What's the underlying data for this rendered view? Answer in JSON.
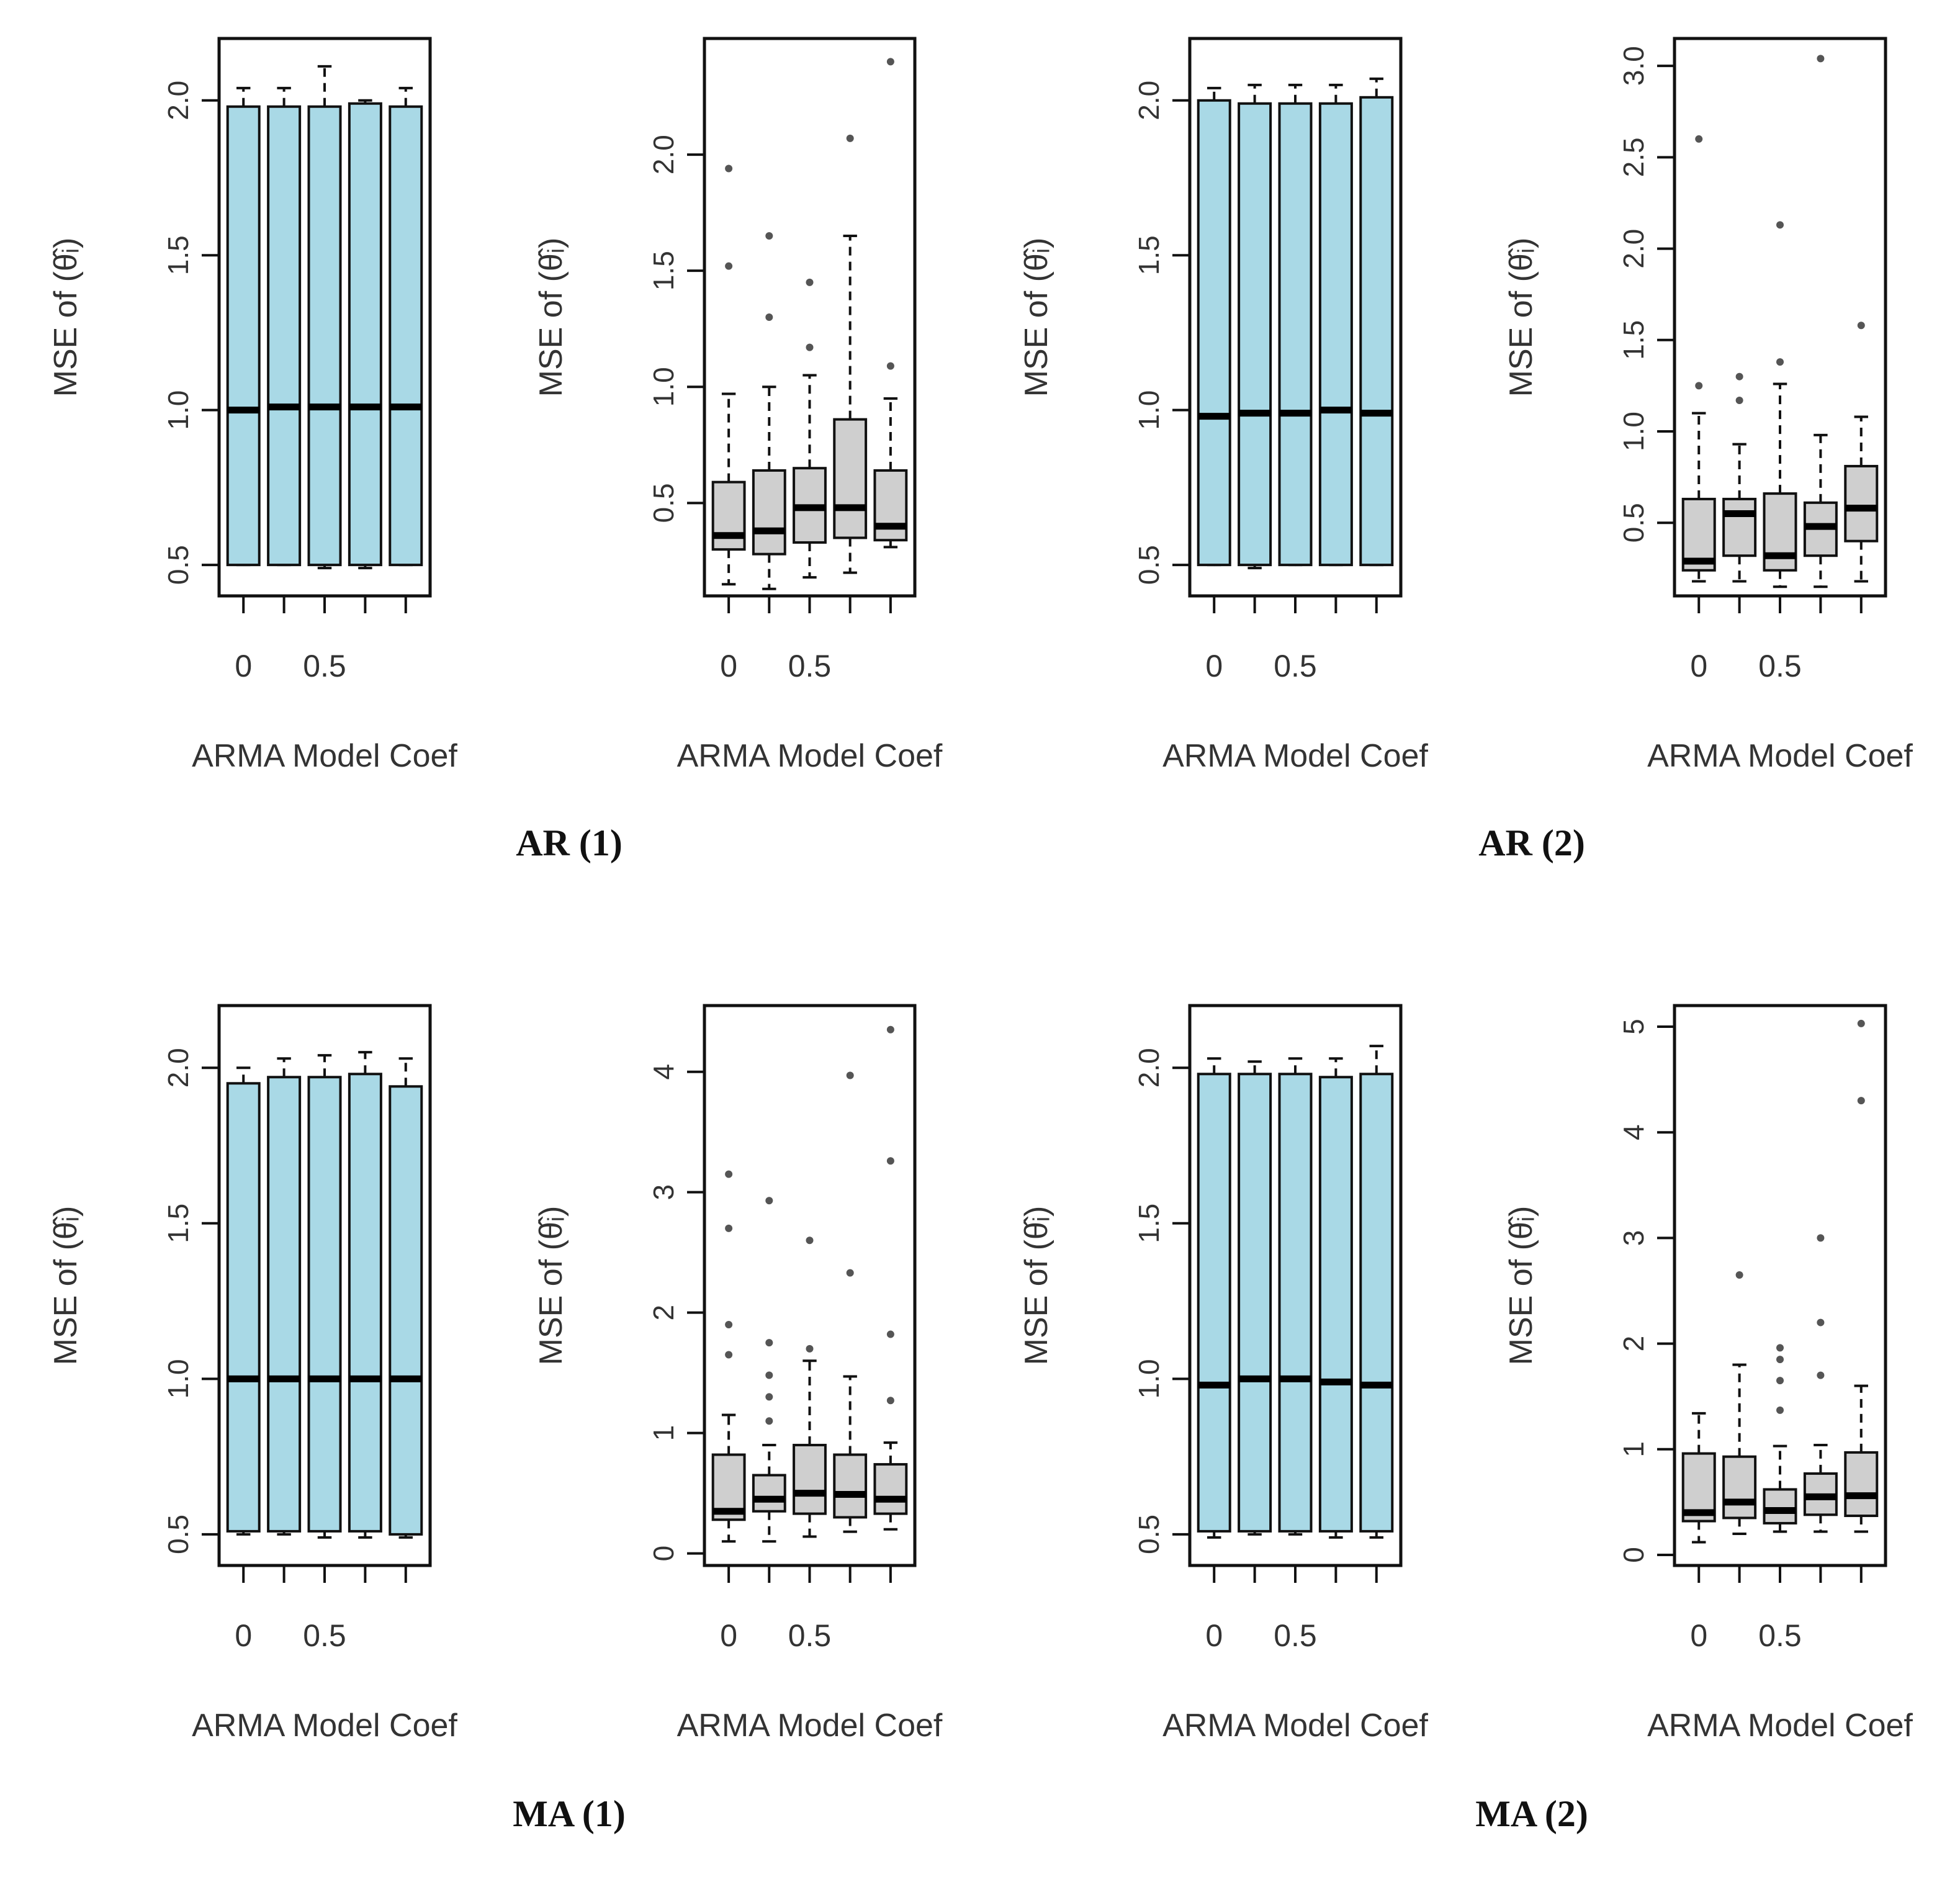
{
  "figure": {
    "colors": {
      "blue_box": "#a9d9e6",
      "gray_box": "#cfcfcf",
      "frame": "#111111",
      "text": "#333333"
    },
    "group_titles": [
      "AR (1)",
      "AR (2)",
      "MA (1)",
      "MA (2)"
    ]
  },
  "chart_data": [
    {
      "type": "box",
      "group": "AR (1)",
      "panel": "left",
      "xlabel": "ARMA Model Coef",
      "ylabel": "MSE of (θ̂ᵢ)",
      "x_ticks": [
        "0",
        "0.5"
      ],
      "y_ticks": [
        "0.5",
        "1.0",
        "1.5",
        "2.0"
      ],
      "ylim": [
        0.4,
        2.2
      ],
      "box_color": "#a9d9e6",
      "boxes": [
        {
          "whisker_low": 0.5,
          "q1": 0.5,
          "median": 1.0,
          "q3": 1.98,
          "whisker_high": 2.04,
          "outliers": []
        },
        {
          "whisker_low": 0.5,
          "q1": 0.5,
          "median": 1.01,
          "q3": 1.98,
          "whisker_high": 2.04,
          "outliers": []
        },
        {
          "whisker_low": 0.49,
          "q1": 0.5,
          "median": 1.01,
          "q3": 1.98,
          "whisker_high": 2.11,
          "outliers": []
        },
        {
          "whisker_low": 0.49,
          "q1": 0.5,
          "median": 1.01,
          "q3": 1.99,
          "whisker_high": 2.0,
          "outliers": []
        },
        {
          "whisker_low": 0.5,
          "q1": 0.5,
          "median": 1.01,
          "q3": 1.98,
          "whisker_high": 2.04,
          "outliers": []
        }
      ]
    },
    {
      "type": "box",
      "group": "AR (1)",
      "panel": "right",
      "xlabel": "ARMA Model Coef",
      "ylabel": "MSE of (θ̂ᵢ)",
      "x_ticks": [
        "0",
        "0.5"
      ],
      "y_ticks": [
        "0.5",
        "1.0",
        "1.5",
        "2.0"
      ],
      "ylim": [
        0.1,
        2.5
      ],
      "box_color": "#cfcfcf",
      "boxes": [
        {
          "whisker_low": 0.15,
          "q1": 0.3,
          "median": 0.36,
          "q3": 0.59,
          "whisker_high": 0.97,
          "outliers": [
            1.52,
            1.94
          ]
        },
        {
          "whisker_low": 0.13,
          "q1": 0.28,
          "median": 0.38,
          "q3": 0.64,
          "whisker_high": 1.0,
          "outliers": [
            1.3,
            1.65
          ]
        },
        {
          "whisker_low": 0.18,
          "q1": 0.33,
          "median": 0.48,
          "q3": 0.65,
          "whisker_high": 1.05,
          "outliers": [
            1.17,
            1.45
          ]
        },
        {
          "whisker_low": 0.2,
          "q1": 0.35,
          "median": 0.48,
          "q3": 0.86,
          "whisker_high": 1.65,
          "outliers": [
            2.07
          ]
        },
        {
          "whisker_low": 0.31,
          "q1": 0.34,
          "median": 0.4,
          "q3": 0.64,
          "whisker_high": 0.95,
          "outliers": [
            1.09,
            2.4
          ]
        }
      ]
    },
    {
      "type": "box",
      "group": "AR (2)",
      "panel": "left",
      "xlabel": "ARMA Model Coef",
      "ylabel": "MSE of (θ̂ᵢ)",
      "x_ticks": [
        "0",
        "0.5"
      ],
      "y_ticks": [
        "0.5",
        "1.0",
        "1.5",
        "2.0"
      ],
      "ylim": [
        0.4,
        2.2
      ],
      "box_color": "#a9d9e6",
      "boxes": [
        {
          "whisker_low": 0.5,
          "q1": 0.5,
          "median": 0.98,
          "q3": 2.0,
          "whisker_high": 2.04,
          "outliers": []
        },
        {
          "whisker_low": 0.49,
          "q1": 0.5,
          "median": 0.99,
          "q3": 1.99,
          "whisker_high": 2.05,
          "outliers": []
        },
        {
          "whisker_low": 0.5,
          "q1": 0.5,
          "median": 0.99,
          "q3": 1.99,
          "whisker_high": 2.05,
          "outliers": []
        },
        {
          "whisker_low": 0.5,
          "q1": 0.5,
          "median": 1.0,
          "q3": 1.99,
          "whisker_high": 2.05,
          "outliers": []
        },
        {
          "whisker_low": 0.5,
          "q1": 0.5,
          "median": 0.99,
          "q3": 2.01,
          "whisker_high": 2.07,
          "outliers": []
        }
      ]
    },
    {
      "type": "box",
      "group": "AR (2)",
      "panel": "right",
      "xlabel": "ARMA Model Coef",
      "ylabel": "MSE of (θ̂ᵢ)",
      "x_ticks": [
        "0",
        "0.5"
      ],
      "y_ticks": [
        "0.5",
        "1.0",
        "1.5",
        "2.0",
        "2.5",
        "3.0"
      ],
      "ylim": [
        0.1,
        3.15
      ],
      "box_color": "#cfcfcf",
      "boxes": [
        {
          "whisker_low": 0.18,
          "q1": 0.24,
          "median": 0.29,
          "q3": 0.63,
          "whisker_high": 1.1,
          "outliers": [
            1.25,
            2.6
          ]
        },
        {
          "whisker_low": 0.18,
          "q1": 0.32,
          "median": 0.55,
          "q3": 0.63,
          "whisker_high": 0.93,
          "outliers": [
            1.17,
            1.3
          ]
        },
        {
          "whisker_low": 0.15,
          "q1": 0.24,
          "median": 0.32,
          "q3": 0.66,
          "whisker_high": 1.26,
          "outliers": [
            1.38,
            2.13
          ]
        },
        {
          "whisker_low": 0.15,
          "q1": 0.32,
          "median": 0.48,
          "q3": 0.61,
          "whisker_high": 0.98,
          "outliers": [
            3.04
          ]
        },
        {
          "whisker_low": 0.18,
          "q1": 0.4,
          "median": 0.58,
          "q3": 0.81,
          "whisker_high": 1.08,
          "outliers": [
            1.58
          ]
        }
      ]
    },
    {
      "type": "box",
      "group": "MA (1)",
      "panel": "left",
      "xlabel": "ARMA Model Coef",
      "ylabel": "MSE of (θ̂ᵢ)",
      "x_ticks": [
        "0",
        "0.5"
      ],
      "y_ticks": [
        "0.5",
        "1.0",
        "1.5",
        "2.0"
      ],
      "ylim": [
        0.4,
        2.2
      ],
      "box_color": "#a9d9e6",
      "boxes": [
        {
          "whisker_low": 0.5,
          "q1": 0.51,
          "median": 1.0,
          "q3": 1.95,
          "whisker_high": 2.0,
          "outliers": []
        },
        {
          "whisker_low": 0.5,
          "q1": 0.51,
          "median": 1.0,
          "q3": 1.97,
          "whisker_high": 2.03,
          "outliers": []
        },
        {
          "whisker_low": 0.49,
          "q1": 0.51,
          "median": 1.0,
          "q3": 1.97,
          "whisker_high": 2.04,
          "outliers": []
        },
        {
          "whisker_low": 0.49,
          "q1": 0.51,
          "median": 1.0,
          "q3": 1.98,
          "whisker_high": 2.05,
          "outliers": []
        },
        {
          "whisker_low": 0.49,
          "q1": 0.5,
          "median": 1.0,
          "q3": 1.94,
          "whisker_high": 2.03,
          "outliers": []
        }
      ]
    },
    {
      "type": "box",
      "group": "MA (1)",
      "panel": "right",
      "xlabel": "ARMA Model Coef",
      "ylabel": "MSE of (θ̂ᵢ)",
      "x_ticks": [
        "0",
        "0.5"
      ],
      "y_ticks": [
        "0",
        "1",
        "2",
        "3",
        "4"
      ],
      "ylim": [
        -0.1,
        4.55
      ],
      "box_color": "#cfcfcf",
      "boxes": [
        {
          "whisker_low": 0.1,
          "q1": 0.28,
          "median": 0.35,
          "q3": 0.82,
          "whisker_high": 1.15,
          "outliers": [
            1.65,
            1.9,
            2.7,
            3.15
          ]
        },
        {
          "whisker_low": 0.1,
          "q1": 0.35,
          "median": 0.45,
          "q3": 0.65,
          "whisker_high": 0.9,
          "outliers": [
            1.1,
            1.3,
            1.48,
            1.75,
            2.93
          ]
        },
        {
          "whisker_low": 0.14,
          "q1": 0.33,
          "median": 0.5,
          "q3": 0.9,
          "whisker_high": 1.6,
          "outliers": [
            1.7,
            2.6
          ]
        },
        {
          "whisker_low": 0.18,
          "q1": 0.3,
          "median": 0.49,
          "q3": 0.82,
          "whisker_high": 1.47,
          "outliers": [
            2.33,
            3.97
          ]
        },
        {
          "whisker_low": 0.2,
          "q1": 0.33,
          "median": 0.45,
          "q3": 0.74,
          "whisker_high": 0.92,
          "outliers": [
            1.27,
            1.82,
            3.26,
            4.35
          ]
        }
      ]
    },
    {
      "type": "box",
      "group": "MA (2)",
      "panel": "left",
      "xlabel": "ARMA Model Coef",
      "ylabel": "MSE of (θ̂ᵢ)",
      "x_ticks": [
        "0",
        "0.5"
      ],
      "y_ticks": [
        "0.5",
        "1.0",
        "1.5",
        "2.0"
      ],
      "ylim": [
        0.4,
        2.2
      ],
      "box_color": "#a9d9e6",
      "boxes": [
        {
          "whisker_low": 0.49,
          "q1": 0.51,
          "median": 0.98,
          "q3": 1.98,
          "whisker_high": 2.03,
          "outliers": []
        },
        {
          "whisker_low": 0.5,
          "q1": 0.51,
          "median": 1.0,
          "q3": 1.98,
          "whisker_high": 2.02,
          "outliers": []
        },
        {
          "whisker_low": 0.5,
          "q1": 0.51,
          "median": 1.0,
          "q3": 1.98,
          "whisker_high": 2.03,
          "outliers": []
        },
        {
          "whisker_low": 0.49,
          "q1": 0.51,
          "median": 0.99,
          "q3": 1.97,
          "whisker_high": 2.03,
          "outliers": []
        },
        {
          "whisker_low": 0.49,
          "q1": 0.51,
          "median": 0.98,
          "q3": 1.98,
          "whisker_high": 2.07,
          "outliers": []
        }
      ]
    },
    {
      "type": "box",
      "group": "MA (2)",
      "panel": "right",
      "xlabel": "ARMA Model Coef",
      "ylabel": "MSE of (θ̂ᵢ)",
      "x_ticks": [
        "0",
        "0.5"
      ],
      "y_ticks": [
        "0",
        "1",
        "2",
        "3",
        "4",
        "5"
      ],
      "ylim": [
        -0.1,
        5.2
      ],
      "box_color": "#cfcfcf",
      "boxes": [
        {
          "whisker_low": 0.12,
          "q1": 0.32,
          "median": 0.4,
          "q3": 0.96,
          "whisker_high": 1.34,
          "outliers": []
        },
        {
          "whisker_low": 0.2,
          "q1": 0.35,
          "median": 0.5,
          "q3": 0.93,
          "whisker_high": 1.8,
          "outliers": [
            2.65
          ]
        },
        {
          "whisker_low": 0.22,
          "q1": 0.3,
          "median": 0.42,
          "q3": 0.62,
          "whisker_high": 1.03,
          "outliers": [
            1.37,
            1.65,
            1.85,
            1.96
          ]
        },
        {
          "whisker_low": 0.22,
          "q1": 0.38,
          "median": 0.55,
          "q3": 0.77,
          "whisker_high": 1.04,
          "outliers": [
            1.7,
            2.2,
            3.0
          ]
        },
        {
          "whisker_low": 0.22,
          "q1": 0.37,
          "median": 0.56,
          "q3": 0.97,
          "whisker_high": 1.6,
          "outliers": [
            4.3,
            5.03
          ]
        }
      ]
    }
  ]
}
